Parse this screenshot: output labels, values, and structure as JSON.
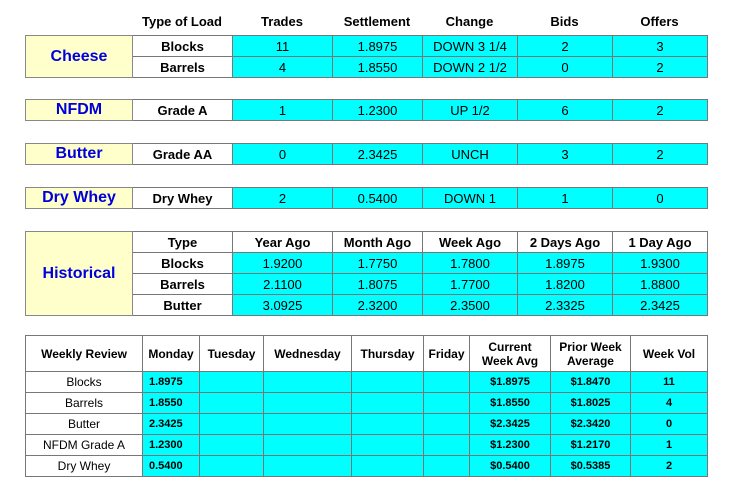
{
  "top_headers": [
    "Type of Load",
    "Trades",
    "Settlement",
    "Change",
    "Bids",
    "Offers"
  ],
  "cheese": {
    "label": "Cheese",
    "rows": [
      {
        "type": "Blocks",
        "trades": "11",
        "settlement": "1.8975",
        "change": "DOWN 3 1/4",
        "bids": "2",
        "offers": "3"
      },
      {
        "type": "Barrels",
        "trades": "4",
        "settlement": "1.8550",
        "change": "DOWN 2 1/2",
        "bids": "0",
        "offers": "2"
      }
    ]
  },
  "nfdm": {
    "label": "NFDM",
    "row": {
      "type": "Grade A",
      "trades": "1",
      "settlement": "1.2300",
      "change": "UP 1/2",
      "bids": "6",
      "offers": "2"
    }
  },
  "butter": {
    "label": "Butter",
    "row": {
      "type": "Grade AA",
      "trades": "0",
      "settlement": "2.3425",
      "change": "UNCH",
      "bids": "3",
      "offers": "2"
    }
  },
  "dry_whey": {
    "label": "Dry Whey",
    "row": {
      "type": "Dry Whey",
      "trades": "2",
      "settlement": "0.5400",
      "change": "DOWN 1",
      "bids": "1",
      "offers": "0"
    }
  },
  "historical": {
    "label": "Historical",
    "headers": [
      "Type",
      "Year Ago",
      "Month Ago",
      "Week Ago",
      "2 Days Ago",
      "1 Day Ago"
    ],
    "rows": [
      {
        "type": "Blocks",
        "values": [
          "1.9200",
          "1.7750",
          "1.7800",
          "1.8975",
          "1.9300"
        ]
      },
      {
        "type": "Barrels",
        "values": [
          "2.1100",
          "1.8075",
          "1.7700",
          "1.8200",
          "1.8800"
        ]
      },
      {
        "type": "Butter",
        "values": [
          "3.0925",
          "2.3200",
          "2.3500",
          "2.3325",
          "2.3425"
        ]
      }
    ]
  },
  "weekly": {
    "headers": {
      "review": "Weekly Review",
      "monday": "Monday",
      "tuesday": "Tuesday",
      "wednesday": "Wednesday",
      "thursday": "Thursday",
      "friday": "Friday",
      "current_1": "Current",
      "current_2": "Week Avg",
      "prior_1": "Prior Week",
      "prior_2": "Average",
      "vol": "Week Vol"
    },
    "rows": [
      {
        "name": "Blocks",
        "monday": "1.8975",
        "tuesday": "",
        "wednesday": "",
        "thursday": "",
        "friday": "",
        "avg": "$1.8975",
        "prior": "$1.8470",
        "vol": "11"
      },
      {
        "name": "Barrels",
        "monday": "1.8550",
        "tuesday": "",
        "wednesday": "",
        "thursday": "",
        "friday": "",
        "avg": "$1.8550",
        "prior": "$1.8025",
        "vol": "4"
      },
      {
        "name": "Butter",
        "monday": "2.3425",
        "tuesday": "",
        "wednesday": "",
        "thursday": "",
        "friday": "",
        "avg": "$2.3425",
        "prior": "$2.3420",
        "vol": "0"
      },
      {
        "name": "NFDM Grade A",
        "monday": "1.2300",
        "tuesday": "",
        "wednesday": "",
        "thursday": "",
        "friday": "",
        "avg": "$1.2300",
        "prior": "$1.2170",
        "vol": "1"
      },
      {
        "name": "Dry Whey",
        "monday": "0.5400",
        "tuesday": "",
        "wednesday": "",
        "thursday": "",
        "friday": "",
        "avg": "$0.5400",
        "prior": "$0.5385",
        "vol": "2"
      }
    ]
  }
}
